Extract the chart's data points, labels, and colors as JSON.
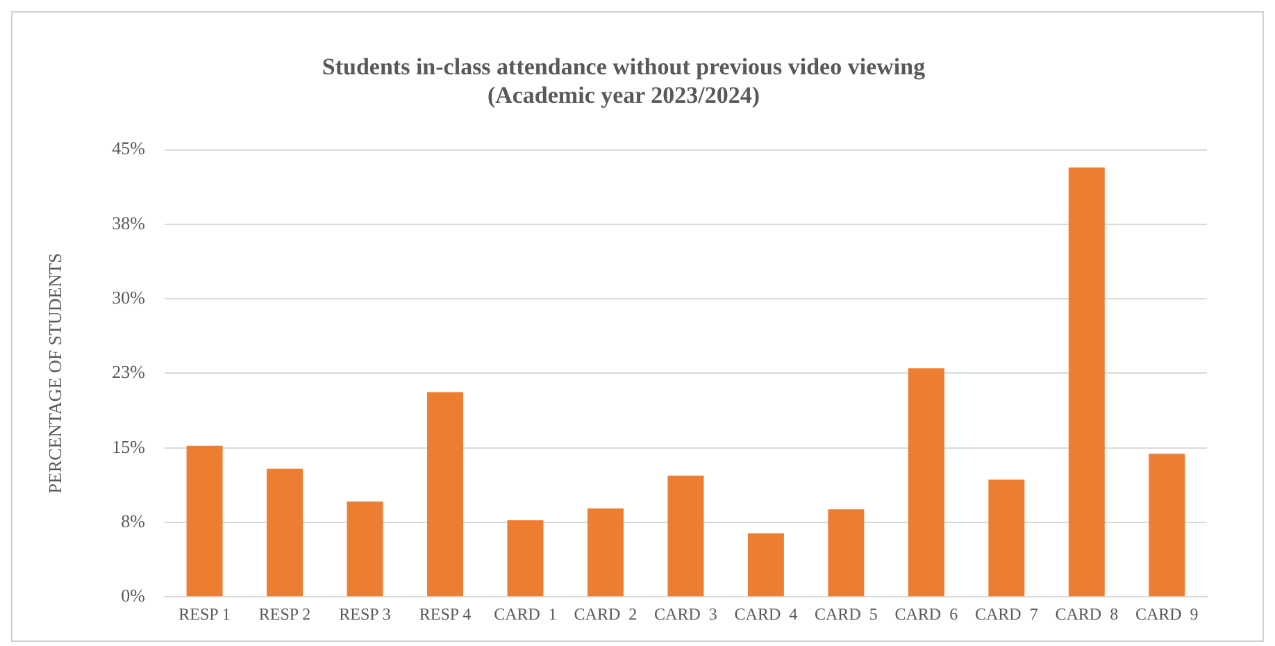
{
  "chart_data": {
    "type": "bar",
    "title": [
      "Students in-class attendance without previous video viewing",
      "(Academic year 2023/2024)"
    ],
    "ylabel": "PERCENTAGE OF STUDENTS",
    "categories": [
      "RESP 1",
      "RESP 2",
      "RESP 3",
      "RESP 4",
      "CARD  1",
      "CARD  2",
      "CARD  3",
      "CARD  4",
      "CARD  5",
      "CARD  6",
      "CARD  7",
      "CARD  8",
      "CARD  9"
    ],
    "values": [
      15.2,
      12.9,
      9.6,
      20.6,
      7.7,
      8.9,
      12.2,
      6.4,
      8.8,
      23.0,
      11.8,
      43.2,
      14.4
    ],
    "color": "#ed7d31",
    "ylim": [
      0,
      45
    ],
    "yticks": [
      {
        "value": 0,
        "label": "0%"
      },
      {
        "value": 7.5,
        "label": "8%"
      },
      {
        "value": 15,
        "label": "15%"
      },
      {
        "value": 22.5,
        "label": "23%"
      },
      {
        "value": 30,
        "label": "30%"
      },
      {
        "value": 37.5,
        "label": "38%"
      },
      {
        "value": 45,
        "label": "45%"
      }
    ],
    "grid": "y",
    "legend": false
  }
}
